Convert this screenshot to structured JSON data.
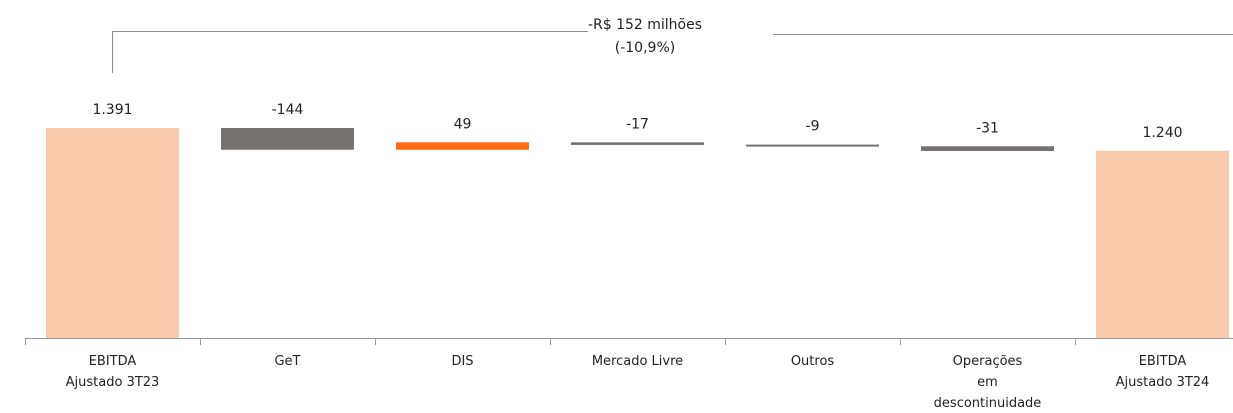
{
  "chart_data": {
    "type": "waterfall",
    "categories": [
      [
        "EBITDA",
        "Ajustado 3T23"
      ],
      [
        "GeT"
      ],
      [
        "DIS"
      ],
      [
        "Mercado Livre"
      ],
      [
        "Outros"
      ],
      [
        "Operações",
        "em",
        "descontinuidade"
      ],
      [
        "EBITDA",
        "Ajustado 3T24"
      ]
    ],
    "values": [
      1391,
      -144,
      49,
      -17,
      -9,
      -31,
      1240
    ],
    "data_labels": [
      "1.391",
      "-144",
      "49",
      "-17",
      "-9",
      "-31",
      "1.240"
    ],
    "bar_kind": [
      "total",
      "delta",
      "delta",
      "delta",
      "delta",
      "delta",
      "total"
    ],
    "colors": [
      "#f8cbad",
      "#767171",
      "#ff6a13",
      "#767171",
      "#767171",
      "#767171",
      "#f8cbad"
    ],
    "ylim": [
      0,
      1391
    ],
    "annotation": {
      "line1": "-R$ 152 milhões",
      "line2": "(-10,9%)"
    }
  }
}
